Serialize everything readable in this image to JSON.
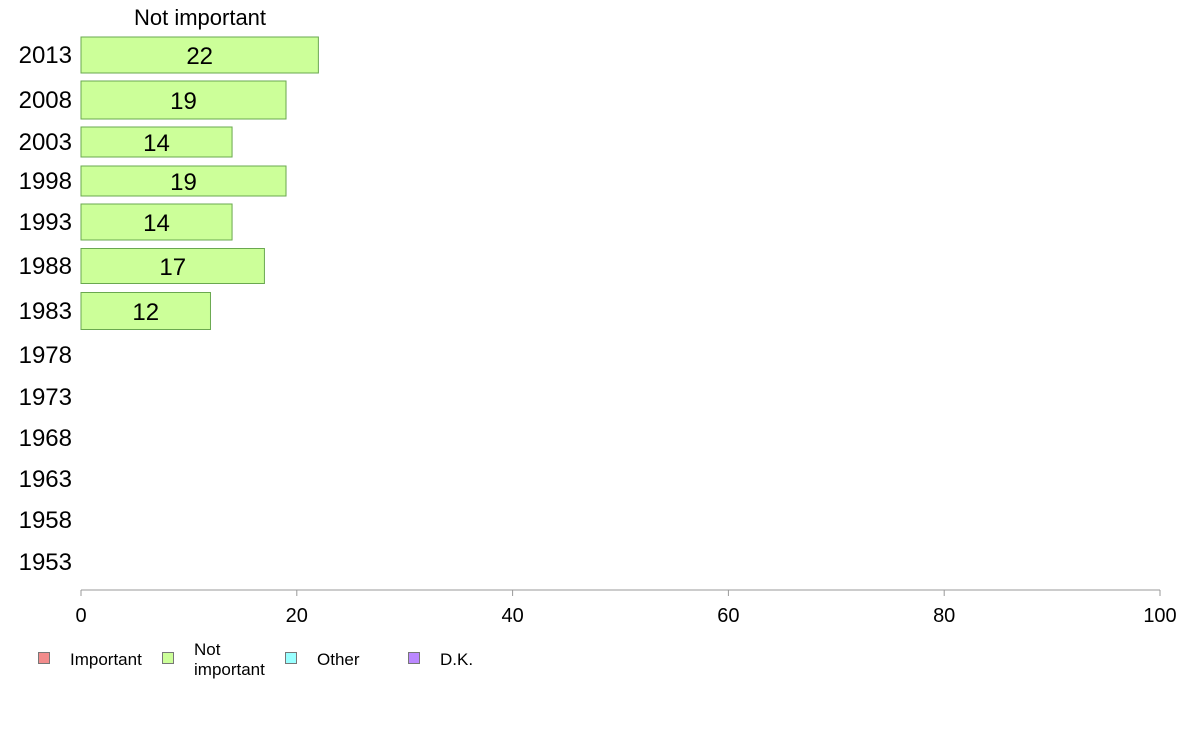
{
  "chart_data": {
    "type": "bar",
    "orientation": "horizontal",
    "title": "Not important",
    "categories": [
      "2013",
      "2008",
      "2003",
      "1998",
      "1993",
      "1988",
      "1983",
      "1978",
      "1973",
      "1968",
      "1963",
      "1958",
      "1953"
    ],
    "series": [
      {
        "name": "Not important",
        "color": "#ccff99",
        "values": [
          22,
          19,
          14,
          19,
          14,
          17,
          12,
          null,
          null,
          null,
          null,
          null,
          null
        ]
      }
    ],
    "data_labels": [
      "22",
      "19",
      "14",
      "19",
      "14",
      "17",
      "12",
      "",
      "",
      "",
      "",
      "",
      ""
    ],
    "xlim": [
      0,
      100
    ],
    "xticks": [
      0,
      20,
      40,
      60,
      80,
      100
    ],
    "grid": false,
    "legend_position": "bottom-left",
    "legend": [
      {
        "label": "Important",
        "color": "#f28c8c"
      },
      {
        "label": "Not\nimportant",
        "color": "#ccff99"
      },
      {
        "label": "Other",
        "color": "#99ffff"
      },
      {
        "label": "D.K.",
        "color": "#bb88ff"
      }
    ]
  }
}
